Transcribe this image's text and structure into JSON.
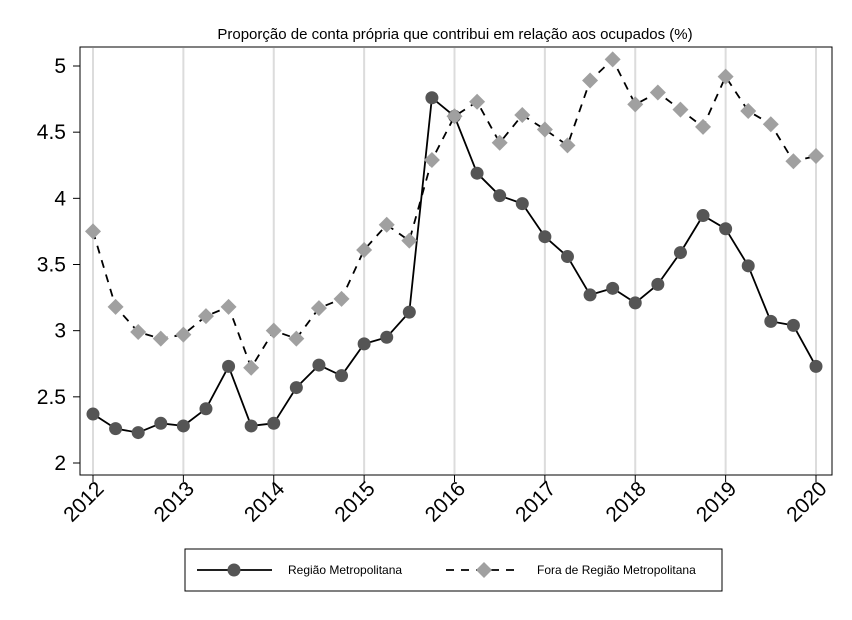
{
  "chart_data": {
    "type": "line",
    "title": "Proporção de conta própria que contribui em relação aos ocupados (%)",
    "xlabel": "",
    "ylabel": "",
    "x_ticks": [
      "2012",
      "2013",
      "2014",
      "2015",
      "2016",
      "2017",
      "2018",
      "2019",
      "2020"
    ],
    "y_ticks": [
      "2",
      "2.5",
      "3",
      "3.5",
      "4",
      "4.5",
      "5"
    ],
    "xlim": [
      2012,
      2020
    ],
    "ylim": [
      1.9,
      5.15
    ],
    "grid": "vertical lines at x ticks",
    "legend_position": "bottom",
    "x": [
      2012.0,
      2012.25,
      2012.5,
      2012.75,
      2013.0,
      2013.25,
      2013.5,
      2013.75,
      2014.0,
      2014.25,
      2014.5,
      2014.75,
      2015.0,
      2015.25,
      2015.5,
      2015.75,
      2016.0,
      2016.25,
      2016.5,
      2016.75,
      2017.0,
      2017.25,
      2017.5,
      2017.75,
      2018.0,
      2018.25,
      2018.5,
      2018.75,
      2019.0,
      2019.25,
      2019.5,
      2019.75,
      2020.0
    ],
    "series": [
      {
        "name": "Região Metropolitana",
        "color": "#555555",
        "marker": "circle",
        "line_style": "solid",
        "values": [
          2.37,
          2.26,
          2.23,
          2.3,
          2.28,
          2.41,
          2.73,
          2.28,
          2.3,
          2.57,
          2.74,
          2.66,
          2.9,
          2.95,
          3.14,
          4.76,
          4.62,
          4.19,
          4.02,
          3.96,
          3.71,
          3.56,
          3.27,
          3.32,
          3.21,
          3.35,
          3.59,
          3.87,
          3.77,
          3.49,
          3.07,
          3.04,
          2.73
        ]
      },
      {
        "name": "Fora de Região Metropolitana",
        "color": "#a0a0a0",
        "marker": "diamond",
        "line_style": "dashed",
        "values": [
          3.75,
          3.18,
          2.99,
          2.94,
          2.97,
          3.11,
          3.18,
          2.72,
          3.0,
          2.94,
          3.17,
          3.24,
          3.61,
          3.8,
          3.68,
          4.29,
          4.62,
          4.73,
          4.42,
          4.63,
          4.52,
          4.4,
          4.89,
          5.05,
          4.71,
          4.8,
          4.67,
          4.54,
          4.92,
          4.66,
          4.56,
          4.28,
          4.32
        ]
      }
    ]
  }
}
